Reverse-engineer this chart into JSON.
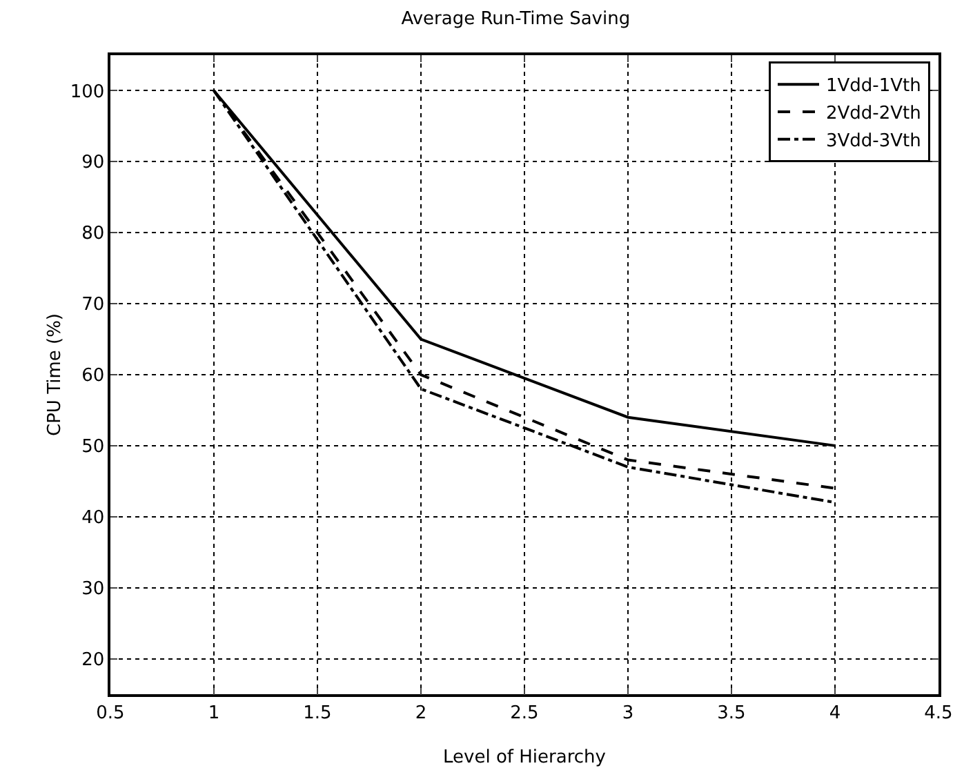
{
  "chart_data": {
    "type": "line",
    "title": "Average Run-Time Saving",
    "xlabel": "Level of Hierarchy",
    "ylabel": "CPU Time (%)",
    "x": [
      1,
      2,
      3,
      4
    ],
    "series": [
      {
        "name": "1Vdd-1Vth",
        "color": "#000000",
        "values": [
          100,
          65,
          54,
          50
        ],
        "line_style": "solid"
      },
      {
        "name": "2Vdd-2Vth",
        "color": "#000000",
        "values": [
          100,
          60,
          48,
          44
        ],
        "line_style": "dashed"
      },
      {
        "name": "3Vdd-3Vth",
        "color": "#000000",
        "values": [
          100,
          58,
          47,
          42
        ],
        "line_style": "dashdot"
      }
    ],
    "xlim": [
      0.5,
      4.5
    ],
    "xticks": [
      0.5,
      1,
      1.5,
      2,
      2.5,
      3,
      3.5,
      4,
      4.5
    ],
    "ylim": [
      15,
      105
    ],
    "yticks": [
      20,
      30,
      40,
      50,
      60,
      70,
      80,
      90,
      100
    ],
    "grid": true,
    "legend": "top right",
    "marker": "none"
  }
}
